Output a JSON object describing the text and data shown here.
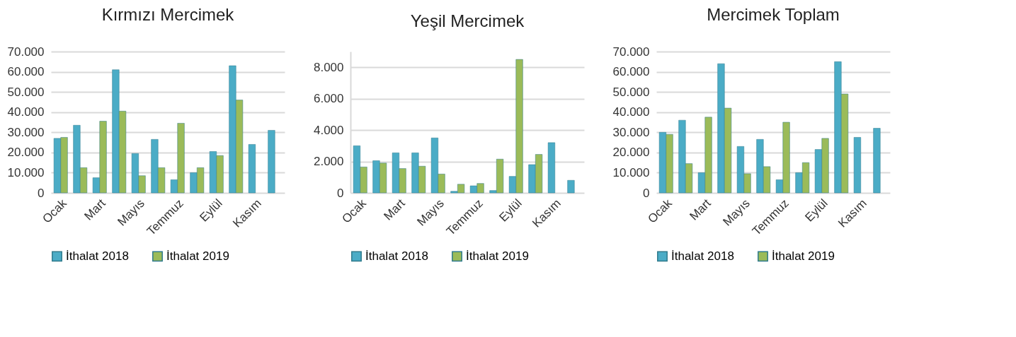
{
  "chart_data": [
    {
      "type": "bar",
      "title": "Kırmızı Mercimek",
      "categories": [
        "Ocak",
        null,
        "Mart",
        null,
        "Mayıs",
        null,
        "Temmuz",
        null,
        "Eylül",
        null,
        "Kasım",
        null
      ],
      "ylim": [
        0,
        70000
      ],
      "yticks": [
        {
          "value": 0,
          "label": "0"
        },
        {
          "value": 10000,
          "label": "10.000"
        },
        {
          "value": 20000,
          "label": "20.000"
        },
        {
          "value": 30000,
          "label": "30.000"
        },
        {
          "value": 40000,
          "label": "40.000"
        },
        {
          "value": 50000,
          "label": "50.000"
        },
        {
          "value": 60000,
          "label": "60.000"
        },
        {
          "value": 70000,
          "label": "70.000"
        }
      ],
      "grid": "y",
      "legend": "bottom",
      "series": [
        {
          "name": "İthalat 2018",
          "color": "#4bacc6",
          "values": [
            27000,
            33500,
            7500,
            61000,
            19500,
            26500,
            6500,
            10000,
            20500,
            63000,
            24000,
            31000
          ]
        },
        {
          "name": "İthalat 2019",
          "color": "#9bbb59",
          "values": [
            27500,
            12500,
            35500,
            40500,
            8500,
            12500,
            34500,
            12500,
            18500,
            46000,
            null,
            null
          ]
        }
      ]
    },
    {
      "type": "bar",
      "title": "Yeşil Mercimek",
      "categories": [
        "Ocak",
        null,
        "Mart",
        null,
        "Mayıs",
        null,
        "Temmuz",
        null,
        "Eylül",
        null,
        "Kasım",
        null
      ],
      "ylim": [
        0,
        9000
      ],
      "yticks": [
        {
          "value": 0,
          "label": "0"
        },
        {
          "value": 2000,
          "label": "2.000"
        },
        {
          "value": 4000,
          "label": "4.000"
        },
        {
          "value": 6000,
          "label": "6.000"
        },
        {
          "value": 8000,
          "label": "8.000"
        }
      ],
      "grid": "y",
      "legend": "bottom",
      "series": [
        {
          "name": "İthalat 2018",
          "color": "#4bacc6",
          "values": [
            3000,
            2050,
            2550,
            2550,
            3500,
            100,
            450,
            150,
            1050,
            1800,
            3200,
            800
          ]
        },
        {
          "name": "İthalat 2019",
          "color": "#9bbb59",
          "values": [
            1650,
            1900,
            1550,
            1700,
            1200,
            550,
            600,
            2150,
            8500,
            2450,
            null,
            null
          ]
        }
      ]
    },
    {
      "type": "bar",
      "title": "Mercimek Toplam",
      "categories": [
        "Ocak",
        null,
        "Mart",
        null,
        "Mayıs",
        null,
        "Temmuz",
        null,
        "Eylül",
        null,
        "Kasım",
        null
      ],
      "ylim": [
        0,
        70000
      ],
      "yticks": [
        {
          "value": 0,
          "label": "0"
        },
        {
          "value": 10000,
          "label": "10.000"
        },
        {
          "value": 20000,
          "label": "20.000"
        },
        {
          "value": 30000,
          "label": "30.000"
        },
        {
          "value": 40000,
          "label": "40.000"
        },
        {
          "value": 50000,
          "label": "50.000"
        },
        {
          "value": 60000,
          "label": "60.000"
        },
        {
          "value": 70000,
          "label": "70.000"
        }
      ],
      "grid": "y",
      "legend": "bottom",
      "series": [
        {
          "name": "İthalat 2018",
          "color": "#4bacc6",
          "values": [
            30000,
            36000,
            10000,
            64000,
            23000,
            26500,
            6500,
            10000,
            21500,
            65000,
            27500,
            32000
          ]
        },
        {
          "name": "İthalat 2019",
          "color": "#9bbb59",
          "values": [
            29000,
            14500,
            37500,
            42000,
            9500,
            13000,
            35000,
            15000,
            27000,
            49000,
            null,
            null
          ]
        }
      ]
    }
  ]
}
